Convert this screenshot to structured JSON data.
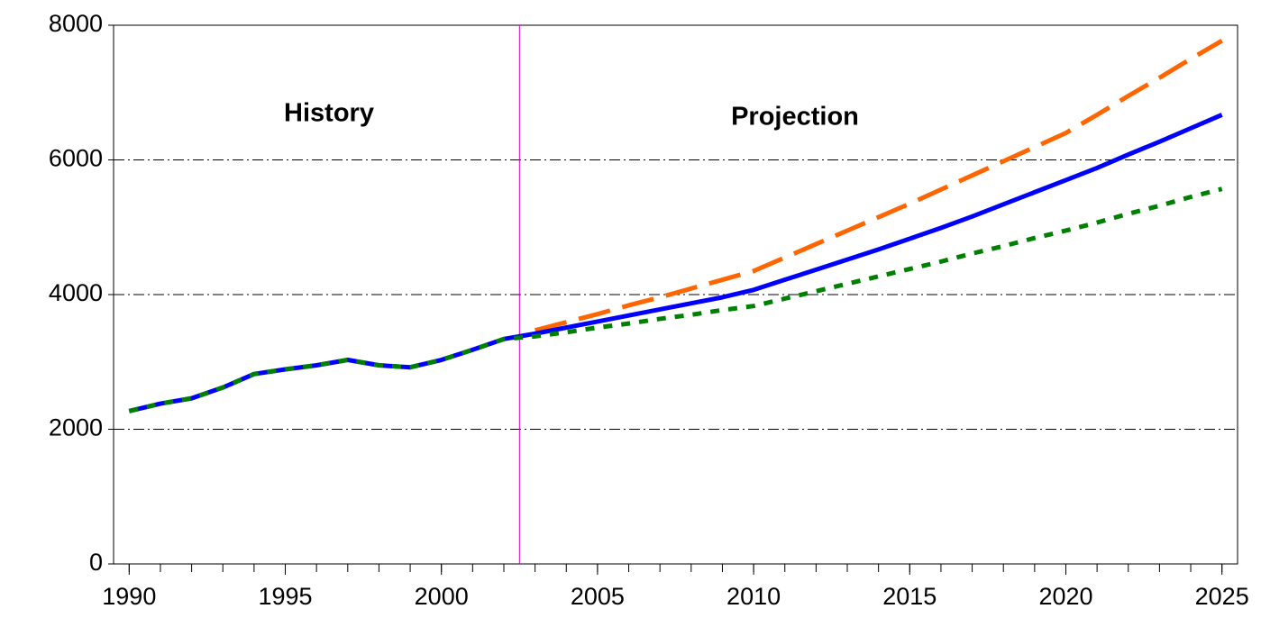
{
  "chart_data": {
    "type": "line",
    "x": [
      1990,
      1991,
      1992,
      1993,
      1994,
      1995,
      1996,
      1997,
      1998,
      1999,
      2000,
      2001,
      2002,
      2003,
      2004,
      2005,
      2006,
      2007,
      2008,
      2009,
      2010,
      2011,
      2012,
      2013,
      2014,
      2015,
      2016,
      2017,
      2018,
      2019,
      2020,
      2021,
      2022,
      2023,
      2024,
      2025
    ],
    "series": [
      {
        "color": "#ff6600",
        "dash": "dashed",
        "values": [
          null,
          null,
          null,
          null,
          null,
          null,
          null,
          null,
          null,
          null,
          null,
          null,
          null,
          3470,
          3590,
          3710,
          3840,
          3960,
          4090,
          4220,
          4350,
          4550,
          4750,
          4950,
          5150,
          5350,
          5560,
          5770,
          5980,
          6190,
          6400,
          6670,
          6950,
          7220,
          7500,
          7770
        ]
      },
      {
        "color": "#0000ff",
        "dash": "solid",
        "values": [
          2270,
          2380,
          2460,
          2620,
          2820,
          2890,
          2950,
          3030,
          2950,
          2920,
          3030,
          3180,
          3340,
          3420,
          3510,
          3600,
          3690,
          3780,
          3870,
          3960,
          4070,
          4220,
          4370,
          4520,
          4670,
          4830,
          4990,
          5160,
          5340,
          5520,
          5700,
          5880,
          6080,
          6270,
          6470,
          6670
        ]
      },
      {
        "color": "#008000",
        "dash": "dotted",
        "values": [
          2270,
          2380,
          2460,
          2620,
          2820,
          2890,
          2950,
          3030,
          2950,
          2920,
          3030,
          3180,
          3340,
          3380,
          3440,
          3510,
          3570,
          3640,
          3700,
          3770,
          3830,
          3940,
          4050,
          4160,
          4270,
          4380,
          4490,
          4610,
          4720,
          4840,
          4950,
          5070,
          5200,
          5320,
          5450,
          5570
        ]
      }
    ],
    "xlim": [
      1989.5,
      2025.5
    ],
    "xticks": [
      1990,
      1995,
      2000,
      2005,
      2010,
      2015,
      2020,
      2025
    ],
    "ylim": [
      0,
      8000
    ],
    "yticks": [
      0,
      2000,
      4000,
      6000,
      8000
    ],
    "grid": true,
    "divider": 2002.5,
    "annotations": [
      "History",
      "Projection"
    ]
  }
}
